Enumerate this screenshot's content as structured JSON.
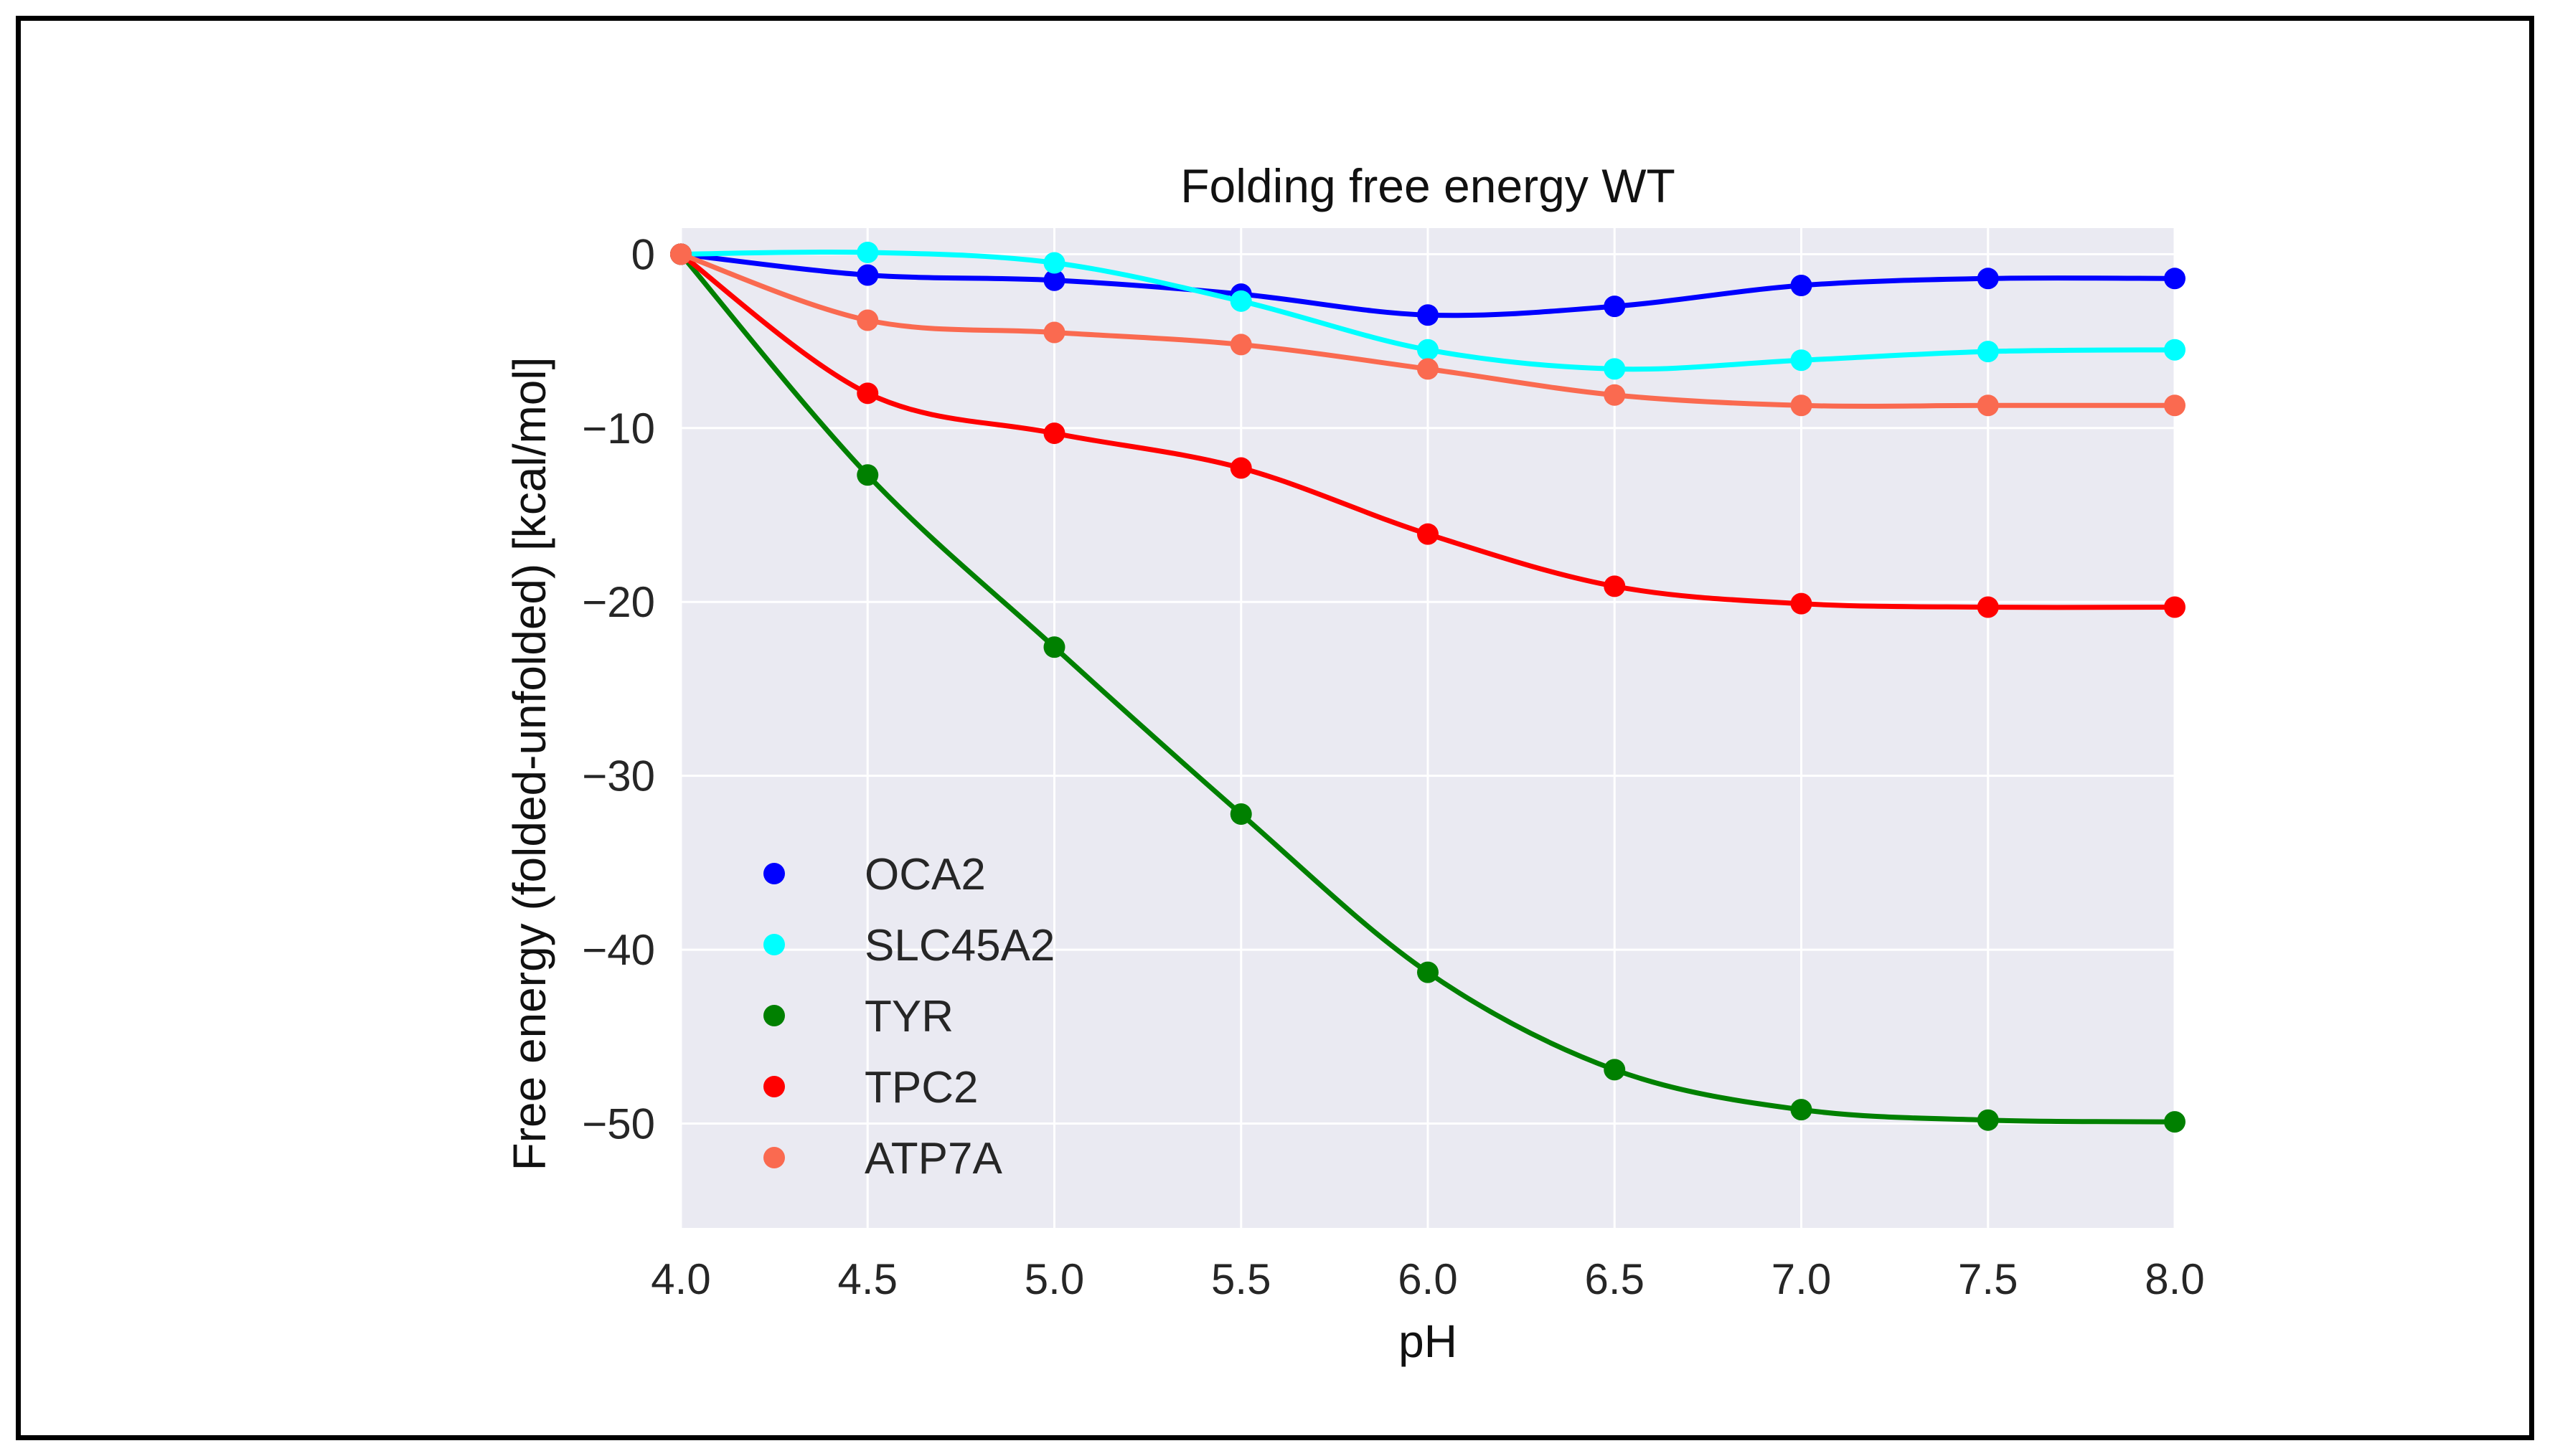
{
  "chart_data": {
    "type": "line",
    "title": "Folding free energy WT",
    "xlabel": "pH",
    "ylabel": "Free energy (folded-unfolded) [kcal/mol]",
    "xlim": [
      4.0,
      8.0
    ],
    "ylim": [
      -56,
      1.5
    ],
    "xticks": [
      4.0,
      4.5,
      5.0,
      5.5,
      6.0,
      6.5,
      7.0,
      7.5,
      8.0
    ],
    "xtick_labels": [
      "4.0",
      "4.5",
      "5.0",
      "5.5",
      "6.0",
      "6.5",
      "7.0",
      "7.5",
      "8.0"
    ],
    "yticks": [
      0,
      -10,
      -20,
      -30,
      -40,
      -50
    ],
    "ytick_labels": [
      "0",
      "−10",
      "−20",
      "−30",
      "−40",
      "−50"
    ],
    "grid": true,
    "legend_position": "lower-left",
    "x": [
      4.0,
      4.5,
      5.0,
      5.5,
      6.0,
      6.5,
      7.0,
      7.5,
      8.0
    ],
    "series": [
      {
        "name": "OCA2",
        "color": "#0000ff",
        "values": [
          0,
          -1.2,
          -1.5,
          -2.3,
          -3.5,
          -3.0,
          -1.8,
          -1.4,
          -1.4
        ]
      },
      {
        "name": "SLC45A2",
        "color": "#00ffff",
        "values": [
          0,
          0.1,
          -0.5,
          -2.7,
          -5.5,
          -6.6,
          -6.1,
          -5.6,
          -5.5
        ]
      },
      {
        "name": "TYR",
        "color": "#008000",
        "values": [
          0,
          -12.7,
          -22.6,
          -32.2,
          -41.3,
          -46.9,
          -49.2,
          -49.8,
          -49.9
        ]
      },
      {
        "name": "TPC2",
        "color": "#ff0000",
        "values": [
          0,
          -8.0,
          -10.3,
          -12.3,
          -16.1,
          -19.1,
          -20.1,
          -20.3,
          -20.3
        ]
      },
      {
        "name": "ATP7A",
        "color": "#fa6a50",
        "values": [
          0,
          -3.8,
          -4.5,
          -5.2,
          -6.6,
          -8.1,
          -8.7,
          -8.7,
          -8.7
        ]
      }
    ]
  }
}
